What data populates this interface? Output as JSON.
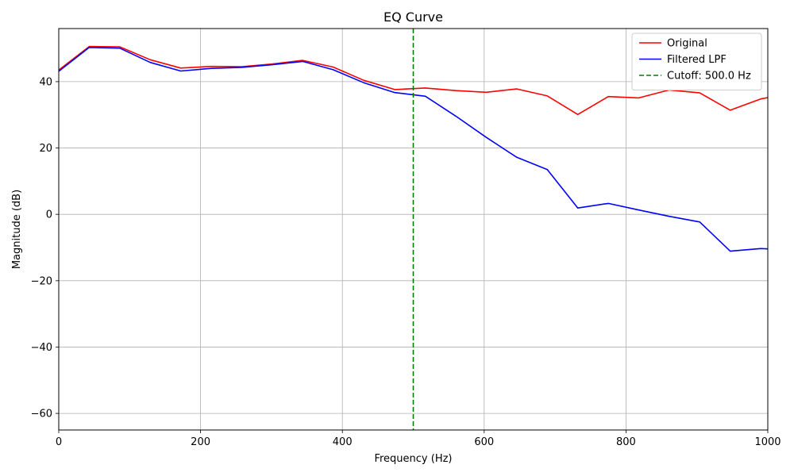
{
  "chart_data": {
    "type": "line",
    "title": "EQ Curve",
    "xlabel": "Frequency (Hz)",
    "ylabel": "Magnitude (dB)",
    "xlim": [
      0,
      1000
    ],
    "ylim": [
      -65,
      56
    ],
    "xticks": [
      0,
      200,
      400,
      600,
      800,
      1000
    ],
    "yticks": [
      -60,
      -40,
      -20,
      0,
      20,
      40
    ],
    "ytick_labels": [
      "−60",
      "−40",
      "−20",
      "0",
      "20",
      "40"
    ],
    "grid": true,
    "legend_position": "top-right",
    "series": [
      {
        "name": "Original",
        "color": "#ff0000",
        "style": "solid",
        "x": [
          0,
          43,
          86,
          129,
          172,
          215,
          258,
          301,
          344,
          387,
          430,
          474,
          517,
          560,
          603,
          646,
          689,
          732,
          775,
          818,
          861,
          904,
          947,
          990,
          1000
        ],
        "y": [
          43.5,
          50.6,
          50.5,
          46.6,
          44.1,
          44.6,
          44.5,
          45.3,
          46.4,
          44.4,
          40.4,
          37.6,
          38.1,
          37.3,
          36.8,
          37.8,
          35.7,
          30.1,
          35.5,
          35.1,
          37.5,
          36.6,
          31.4,
          34.8,
          35.2
        ]
      },
      {
        "name": "Filtered LPF",
        "color": "#0000ff",
        "style": "solid",
        "x": [
          0,
          43,
          86,
          129,
          172,
          215,
          258,
          301,
          344,
          387,
          430,
          474,
          517,
          560,
          603,
          646,
          689,
          732,
          775,
          818,
          861,
          904,
          947,
          990,
          1000
        ],
        "y": [
          43.1,
          50.3,
          50.1,
          45.8,
          43.2,
          44.0,
          44.3,
          45.1,
          46.1,
          43.6,
          39.7,
          36.7,
          35.6,
          29.6,
          23.2,
          17.2,
          13.5,
          1.9,
          3.3,
          1.3,
          -0.6,
          -2.3,
          -11.1,
          -10.3,
          -10.4
        ]
      }
    ],
    "vlines": [
      {
        "name": "Cutoff: 500.0 Hz",
        "x": 500,
        "color": "#008000",
        "style": "dashed"
      }
    ]
  }
}
